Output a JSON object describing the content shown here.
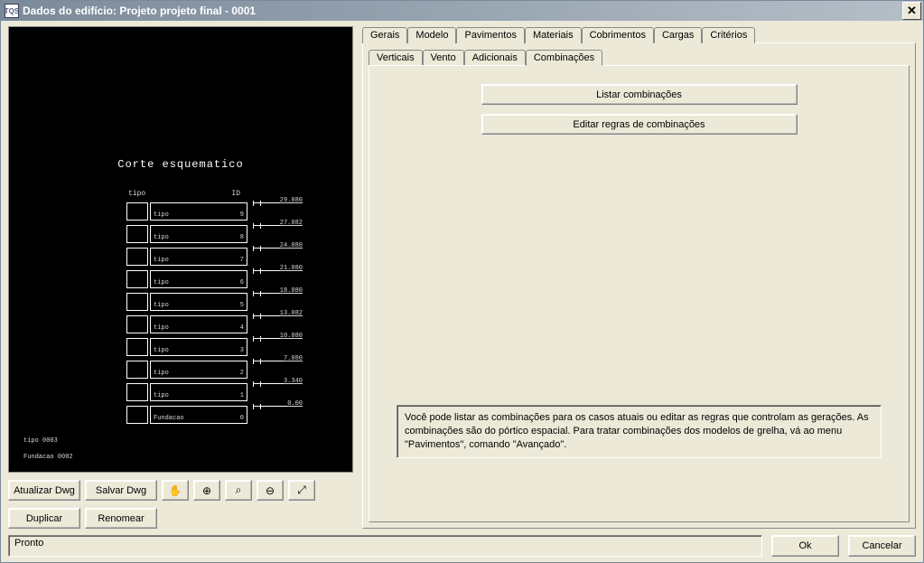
{
  "window": {
    "title": "Dados do edifício: Projeto projeto final - 0001"
  },
  "canvas": {
    "title": "Corte esquematico",
    "header": {
      "c1": "tipo",
      "c2": "ID"
    },
    "rows": [
      {
        "label": "tipo",
        "num": "9",
        "elev": "29.080"
      },
      {
        "label": "tipo",
        "num": "8",
        "elev": "27.082"
      },
      {
        "label": "tipo",
        "num": "7",
        "elev": "24.080"
      },
      {
        "label": "tipo",
        "num": "6",
        "elev": "21.080"
      },
      {
        "label": "tipo",
        "num": "5",
        "elev": "18.080"
      },
      {
        "label": "tipo",
        "num": "4",
        "elev": "13.082"
      },
      {
        "label": "tipo",
        "num": "3",
        "elev": "10.080"
      },
      {
        "label": "tipo",
        "num": "2",
        "elev": "7.080"
      },
      {
        "label": "tipo",
        "num": "1",
        "elev": "3.340"
      },
      {
        "label": "Fundacao",
        "num": "0",
        "elev": "0.00"
      }
    ],
    "side_labels": {
      "l1": "tipo   0003",
      "l2": "Fundacao  0002"
    }
  },
  "toolbar": {
    "atualizar": "Atualizar Dwg",
    "salvar": "Salvar Dwg",
    "duplicar": "Duplicar",
    "renomear": "Renomear",
    "icon_hand": "✋",
    "icon_zoom_in": "⊕",
    "icon_zoom_win": "⌕",
    "icon_zoom_out": "⊖",
    "icon_zoom_ext": "⤢"
  },
  "tabs": {
    "main": [
      "Gerais",
      "Modelo",
      "Pavimentos",
      "Materiais",
      "Cobrimentos",
      "Cargas",
      "Critérios"
    ],
    "main_active": 5,
    "sub": [
      "Verticais",
      "Vento",
      "Adicionais",
      "Combinações"
    ],
    "sub_active": 3
  },
  "panel": {
    "btn_listar": "Listar combinações",
    "btn_editar": "Editar regras de combinações",
    "info": "Você pode listar as combinações para os casos atuais ou editar as regras que controlam as gerações. As combinações são do pórtico espacial. Para tratar combinações dos modelos de grelha, vá ao menu \"Pavimentos\", comando \"Avançado\"."
  },
  "footer": {
    "status": "Pronto",
    "ok": "Ok",
    "cancel": "Cancelar"
  }
}
